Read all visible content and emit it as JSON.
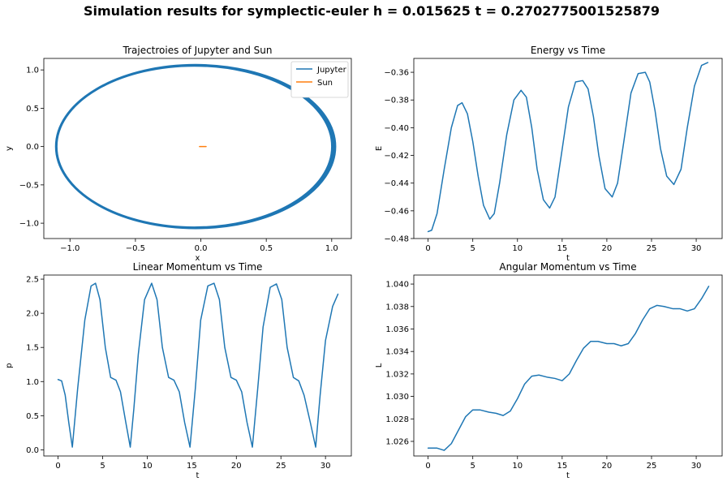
{
  "figure": {
    "suptitle": "Simulation results for symplectic-euler h = 0.015625 t = 0.2702775001525879"
  },
  "colors": {
    "series1": "#1f77b4",
    "series2": "#ff7f0e"
  },
  "chart_data": [
    {
      "id": "traj",
      "type": "line",
      "title": "Trajectroies of Jupyter and Sun",
      "xlabel": "x",
      "ylabel": "y",
      "xlim": [
        -1.2,
        1.15
      ],
      "ylim": [
        -1.2,
        1.15
      ],
      "xticks": [
        -1.0,
        -0.5,
        0.0,
        0.5,
        1.0
      ],
      "xticklabels": [
        "−1.0",
        "−0.5",
        "0.0",
        "0.5",
        "1.0"
      ],
      "yticks": [
        -1.0,
        -0.5,
        0.0,
        0.5,
        1.0
      ],
      "yticklabels": [
        "−1.0",
        "−0.5",
        "0.0",
        "0.5",
        "1.0"
      ],
      "legend_position": "top-right",
      "series": [
        {
          "name": "Jupyter",
          "color": "#1f77b4",
          "kind": "orbit",
          "orbits": 5,
          "left_x": [
            -1.1,
            -1.11
          ],
          "right_x": [
            1.0,
            1.03
          ],
          "y_radius": [
            1.05,
            1.07
          ]
        },
        {
          "name": "Sun",
          "color": "#ff7f0e",
          "kind": "segment",
          "x": [
            -0.01,
            0.04
          ],
          "y": [
            0.0,
            0.0
          ]
        }
      ]
    },
    {
      "id": "energy",
      "type": "line",
      "title": "Energy vs Time",
      "xlabel": "t",
      "ylabel": "E",
      "xlim": [
        -1.6,
        32.9
      ],
      "ylim": [
        -0.48,
        -0.35
      ],
      "xticks": [
        0,
        5,
        10,
        15,
        20,
        25,
        30
      ],
      "xticklabels": [
        "0",
        "5",
        "10",
        "15",
        "20",
        "25",
        "30"
      ],
      "yticks": [
        -0.48,
        -0.46,
        -0.44,
        -0.42,
        -0.4,
        -0.38,
        -0.36
      ],
      "yticklabels": [
        "−0.48",
        "−0.46",
        "−0.44",
        "−0.42",
        "−0.40",
        "−0.38",
        "−0.36"
      ],
      "series": [
        {
          "color": "#1f77b4",
          "x": [
            0,
            0.4,
            1.0,
            1.8,
            2.6,
            3.3,
            3.8,
            4.4,
            5.0,
            5.6,
            6.2,
            6.9,
            7.4,
            8.0,
            8.8,
            9.6,
            10.4,
            11.0,
            11.6,
            12.2,
            12.9,
            13.6,
            14.2,
            14.9,
            15.7,
            16.5,
            17.3,
            17.9,
            18.5,
            19.1,
            19.8,
            20.6,
            21.2,
            21.9,
            22.7,
            23.5,
            24.3,
            24.8,
            25.4,
            26.0,
            26.7,
            27.5,
            28.3,
            29.0,
            29.8,
            30.6,
            31.3
          ],
          "y": [
            -0.475,
            -0.474,
            -0.462,
            -0.43,
            -0.4,
            -0.384,
            -0.382,
            -0.39,
            -0.41,
            -0.435,
            -0.456,
            -0.466,
            -0.462,
            -0.44,
            -0.405,
            -0.38,
            -0.373,
            -0.378,
            -0.4,
            -0.43,
            -0.452,
            -0.458,
            -0.45,
            -0.42,
            -0.385,
            -0.367,
            -0.366,
            -0.372,
            -0.392,
            -0.42,
            -0.444,
            -0.45,
            -0.44,
            -0.41,
            -0.375,
            -0.361,
            -0.36,
            -0.367,
            -0.388,
            -0.415,
            -0.435,
            -0.441,
            -0.43,
            -0.4,
            -0.37,
            -0.355,
            -0.353
          ]
        }
      ]
    },
    {
      "id": "linear",
      "type": "line",
      "title": "Linear Momentum vs Time",
      "xlabel": "t",
      "ylabel": "p",
      "xlim": [
        -1.6,
        32.9
      ],
      "ylim": [
        -0.09,
        2.56
      ],
      "xticks": [
        0,
        5,
        10,
        15,
        20,
        25,
        30
      ],
      "xticklabels": [
        "0",
        "5",
        "10",
        "15",
        "20",
        "25",
        "30"
      ],
      "yticks": [
        0.0,
        0.5,
        1.0,
        1.5,
        2.0,
        2.5
      ],
      "yticklabels": [
        "0.0",
        "0.5",
        "1.0",
        "1.5",
        "2.0",
        "2.5"
      ],
      "series": [
        {
          "color": "#1f77b4",
          "x": [
            0,
            0.4,
            0.8,
            1.2,
            1.6,
            2.2,
            3.0,
            3.7,
            4.2,
            4.7,
            5.3,
            5.9,
            6.5,
            7.0,
            7.6,
            8.1,
            8.5,
            9.0,
            9.7,
            10.5,
            11.1,
            11.7,
            12.4,
            13.0,
            13.6,
            14.2,
            14.8,
            15.4,
            16.0,
            16.8,
            17.5,
            18.1,
            18.7,
            19.4,
            20.0,
            20.6,
            21.2,
            21.8,
            22.4,
            23.0,
            23.8,
            24.5,
            25.1,
            25.7,
            26.4,
            27.0,
            27.6,
            28.3,
            28.9,
            29.4,
            30.0,
            30.8,
            31.4
          ],
          "y": [
            1.03,
            1.01,
            0.8,
            0.4,
            0.04,
            0.9,
            1.9,
            2.4,
            2.44,
            2.2,
            1.5,
            1.06,
            1.02,
            0.85,
            0.4,
            0.04,
            0.6,
            1.4,
            2.2,
            2.44,
            2.2,
            1.5,
            1.06,
            1.02,
            0.85,
            0.4,
            0.04,
            0.9,
            1.9,
            2.4,
            2.44,
            2.2,
            1.5,
            1.06,
            1.02,
            0.85,
            0.4,
            0.04,
            0.9,
            1.8,
            2.38,
            2.43,
            2.2,
            1.5,
            1.06,
            1.01,
            0.8,
            0.4,
            0.04,
            0.8,
            1.6,
            2.1,
            2.28
          ]
        }
      ]
    },
    {
      "id": "angular",
      "type": "line",
      "title": "Angular Momentum vs Time",
      "xlabel": "t",
      "ylabel": "L",
      "xlim": [
        -1.6,
        32.9
      ],
      "ylim": [
        1.0247,
        1.0408
      ],
      "xticks": [
        0,
        5,
        10,
        15,
        20,
        25,
        30
      ],
      "xticklabels": [
        "0",
        "5",
        "10",
        "15",
        "20",
        "25",
        "30"
      ],
      "yticks": [
        1.026,
        1.028,
        1.03,
        1.032,
        1.034,
        1.036,
        1.038,
        1.04
      ],
      "yticklabels": [
        "1.026",
        "1.028",
        "1.030",
        "1.032",
        "1.034",
        "1.036",
        "1.038",
        "1.040"
      ],
      "series": [
        {
          "color": "#1f77b4",
          "x": [
            0,
            1.0,
            1.8,
            2.6,
            3.4,
            4.2,
            5.0,
            5.8,
            6.8,
            7.6,
            8.4,
            9.2,
            10.0,
            10.8,
            11.6,
            12.4,
            13.4,
            14.2,
            15.0,
            15.8,
            16.6,
            17.4,
            18.2,
            19.0,
            20.0,
            20.8,
            21.6,
            22.4,
            23.2,
            24.0,
            24.8,
            25.6,
            26.4,
            27.4,
            28.2,
            29.0,
            29.8,
            30.6,
            31.4
          ],
          "y": [
            1.0254,
            1.0254,
            1.0252,
            1.0258,
            1.027,
            1.0282,
            1.0288,
            1.0288,
            1.0286,
            1.0285,
            1.0283,
            1.0287,
            1.0298,
            1.0311,
            1.0318,
            1.0319,
            1.0317,
            1.0316,
            1.0314,
            1.032,
            1.0332,
            1.0343,
            1.0349,
            1.0349,
            1.0347,
            1.0347,
            1.0345,
            1.0347,
            1.0356,
            1.0368,
            1.0378,
            1.0381,
            1.038,
            1.0378,
            1.0378,
            1.0376,
            1.0378,
            1.0387,
            1.0398
          ]
        }
      ]
    }
  ]
}
